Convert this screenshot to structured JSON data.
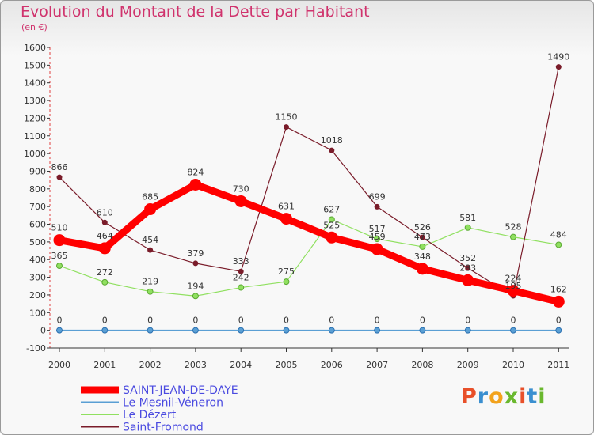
{
  "header": {
    "title": "Evolution du Montant de la Dette par Habitant",
    "subtitle": "(en €)"
  },
  "logo": {
    "text": "Proxiti",
    "colors": [
      "#e8502a",
      "#3a8fd0",
      "#f2a21c",
      "#6ab82e",
      "#e8502a",
      "#3a8fd0",
      "#6ab82e"
    ]
  },
  "chart_data": {
    "type": "line",
    "title": "Evolution du Montant de la Dette par Habitant",
    "subtitle": "(en €)",
    "xlabel": "",
    "ylabel": "",
    "x": [
      "2000",
      "2001",
      "2002",
      "2003",
      "2004",
      "2005",
      "2006",
      "2007",
      "2008",
      "2009",
      "2010",
      "2011"
    ],
    "yticks": [
      -100,
      0,
      100,
      200,
      300,
      400,
      500,
      600,
      700,
      800,
      900,
      1000,
      1100,
      1200,
      1300,
      1400,
      1500,
      1600
    ],
    "ylim": [
      -100,
      1600
    ],
    "grid": false,
    "legend_position": "bottom-left",
    "series": [
      {
        "name": "SAINT-JEAN-DE-DAYE",
        "color": "#ff0000",
        "values": [
          510,
          464,
          685,
          824,
          730,
          631,
          525,
          459,
          348,
          283,
          224,
          162
        ]
      },
      {
        "name": "Le Mesnil-Véneron",
        "color": "#5a9fd4",
        "values": [
          0,
          0,
          0,
          0,
          0,
          0,
          0,
          0,
          0,
          0,
          0,
          0
        ]
      },
      {
        "name": "Le Dézert",
        "color": "#90e060",
        "values": [
          365,
          272,
          219,
          194,
          242,
          275,
          627,
          517,
          473,
          581,
          528,
          484
        ]
      },
      {
        "name": "Saint-Fromond",
        "color": "#7a1c2a",
        "values": [
          866,
          610,
          454,
          379,
          333,
          1150,
          1018,
          699,
          526,
          352,
          195,
          1490
        ]
      }
    ]
  }
}
